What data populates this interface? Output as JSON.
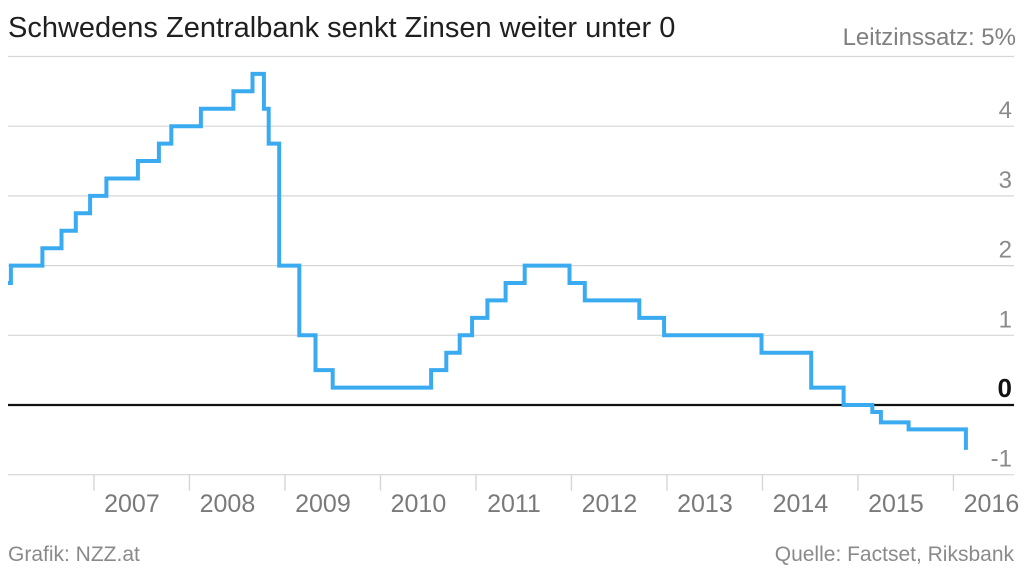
{
  "header": {
    "title": "Schwedens Zentralbank senkt Zinsen weiter unter 0",
    "unit_label": "Leitzinssatz: 5%"
  },
  "footer": {
    "source_left": "Grafik: NZZ.at",
    "source_right": "Quelle: Factset, Riksbank"
  },
  "colors": {
    "line": "#3aabf0",
    "zero_line": "#111111",
    "grid": "#d6d6d6",
    "tick_text": "#8a8a8a",
    "zero_label": "#111111"
  },
  "chart_data": {
    "type": "line",
    "title": "Schwedens Zentralbank senkt Zinsen weiter unter 0",
    "ylabel": "Leitzinssatz",
    "xlabel": "",
    "ylim": [
      -1,
      5
    ],
    "xlim": [
      2006.1,
      2016.25
    ],
    "y_ticks": [
      -1,
      0,
      1,
      2,
      3,
      4
    ],
    "y_tick_labels": [
      "-1",
      "0",
      "1",
      "2",
      "3",
      "4"
    ],
    "x_ticks": [
      2007,
      2008,
      2009,
      2010,
      2011,
      2012,
      2013,
      2014,
      2015,
      2016
    ],
    "x_tick_labels": [
      "2007",
      "2008",
      "2009",
      "2010",
      "2011",
      "2012",
      "2013",
      "2014",
      "2015",
      "2016"
    ],
    "grid": true,
    "step": true,
    "series": [
      {
        "values": [
          {
            "x": 2006.1,
            "y": 1.75
          },
          {
            "x": 2006.13,
            "y": 2.0
          },
          {
            "x": 2006.46,
            "y": 2.25
          },
          {
            "x": 2006.66,
            "y": 2.5
          },
          {
            "x": 2006.81,
            "y": 2.75
          },
          {
            "x": 2006.96,
            "y": 3.0
          },
          {
            "x": 2007.13,
            "y": 3.25
          },
          {
            "x": 2007.46,
            "y": 3.5
          },
          {
            "x": 2007.68,
            "y": 3.75
          },
          {
            "x": 2007.81,
            "y": 4.0
          },
          {
            "x": 2008.12,
            "y": 4.25
          },
          {
            "x": 2008.46,
            "y": 4.5
          },
          {
            "x": 2008.66,
            "y": 4.75
          },
          {
            "x": 2008.78,
            "y": 4.25
          },
          {
            "x": 2008.83,
            "y": 3.75
          },
          {
            "x": 2008.94,
            "y": 2.0
          },
          {
            "x": 2009.15,
            "y": 1.0
          },
          {
            "x": 2009.32,
            "y": 0.5
          },
          {
            "x": 2009.5,
            "y": 0.25
          },
          {
            "x": 2010.53,
            "y": 0.5
          },
          {
            "x": 2010.69,
            "y": 0.75
          },
          {
            "x": 2010.83,
            "y": 1.0
          },
          {
            "x": 2010.96,
            "y": 1.25
          },
          {
            "x": 2011.12,
            "y": 1.5
          },
          {
            "x": 2011.31,
            "y": 1.75
          },
          {
            "x": 2011.51,
            "y": 2.0
          },
          {
            "x": 2011.98,
            "y": 1.75
          },
          {
            "x": 2012.14,
            "y": 1.5
          },
          {
            "x": 2012.71,
            "y": 1.25
          },
          {
            "x": 2012.97,
            "y": 1.0
          },
          {
            "x": 2013.99,
            "y": 0.75
          },
          {
            "x": 2014.51,
            "y": 0.25
          },
          {
            "x": 2014.85,
            "y": 0.0
          },
          {
            "x": 2015.15,
            "y": -0.1
          },
          {
            "x": 2015.24,
            "y": -0.25
          },
          {
            "x": 2015.53,
            "y": -0.35
          },
          {
            "x": 2016.13,
            "y": -0.5
          }
        ]
      }
    ]
  }
}
